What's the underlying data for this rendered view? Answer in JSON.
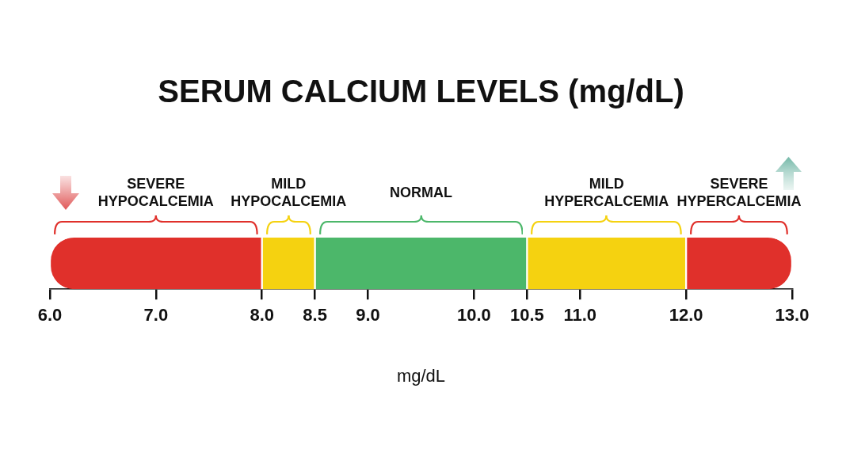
{
  "chart_data": {
    "type": "bar",
    "orientation": "horizontal",
    "title": "SERUM CALCIUM LEVELS (mg/dL)",
    "xlabel": "mg/dL",
    "categories": [
      null
    ],
    "series": [
      {
        "color": "#e0302b",
        "base": [
          6
        ],
        "values": [
          2
        ]
      },
      {
        "color": "#f5d210",
        "base": [
          8
        ],
        "values": [
          0.5
        ]
      },
      {
        "color": "#4cb76a",
        "base": [
          8.5
        ],
        "values": [
          2
        ]
      },
      {
        "color": "#f5d210",
        "base": [
          10.5
        ],
        "values": [
          1.5
        ]
      },
      {
        "color": "#e0302b",
        "base": [
          12
        ],
        "values": [
          1
        ]
      }
    ],
    "annotations": [
      "SEVERE HYPOCALCEMIA",
      "MILD HYPOCALCEMIA",
      "NORMAL",
      "MILD HYPERCALCEMIA",
      "SEVERE HYPERCALCEMIA"
    ],
    "xlim": [
      6,
      13
    ],
    "xticks": [
      {
        "value": 6,
        "label": "6.0"
      },
      {
        "value": 7,
        "label": "7.0"
      },
      {
        "value": 8,
        "label": "8.0"
      },
      8.5,
      {
        "value": 9,
        "label": "9.0"
      },
      {
        "value": 10,
        "label": "10.0"
      },
      10.5,
      {
        "value": 11,
        "label": "11.0"
      },
      {
        "value": 12,
        "label": "12.0"
      },
      {
        "value": 13,
        "label": "13.0"
      }
    ],
    "legend": false
  }
}
